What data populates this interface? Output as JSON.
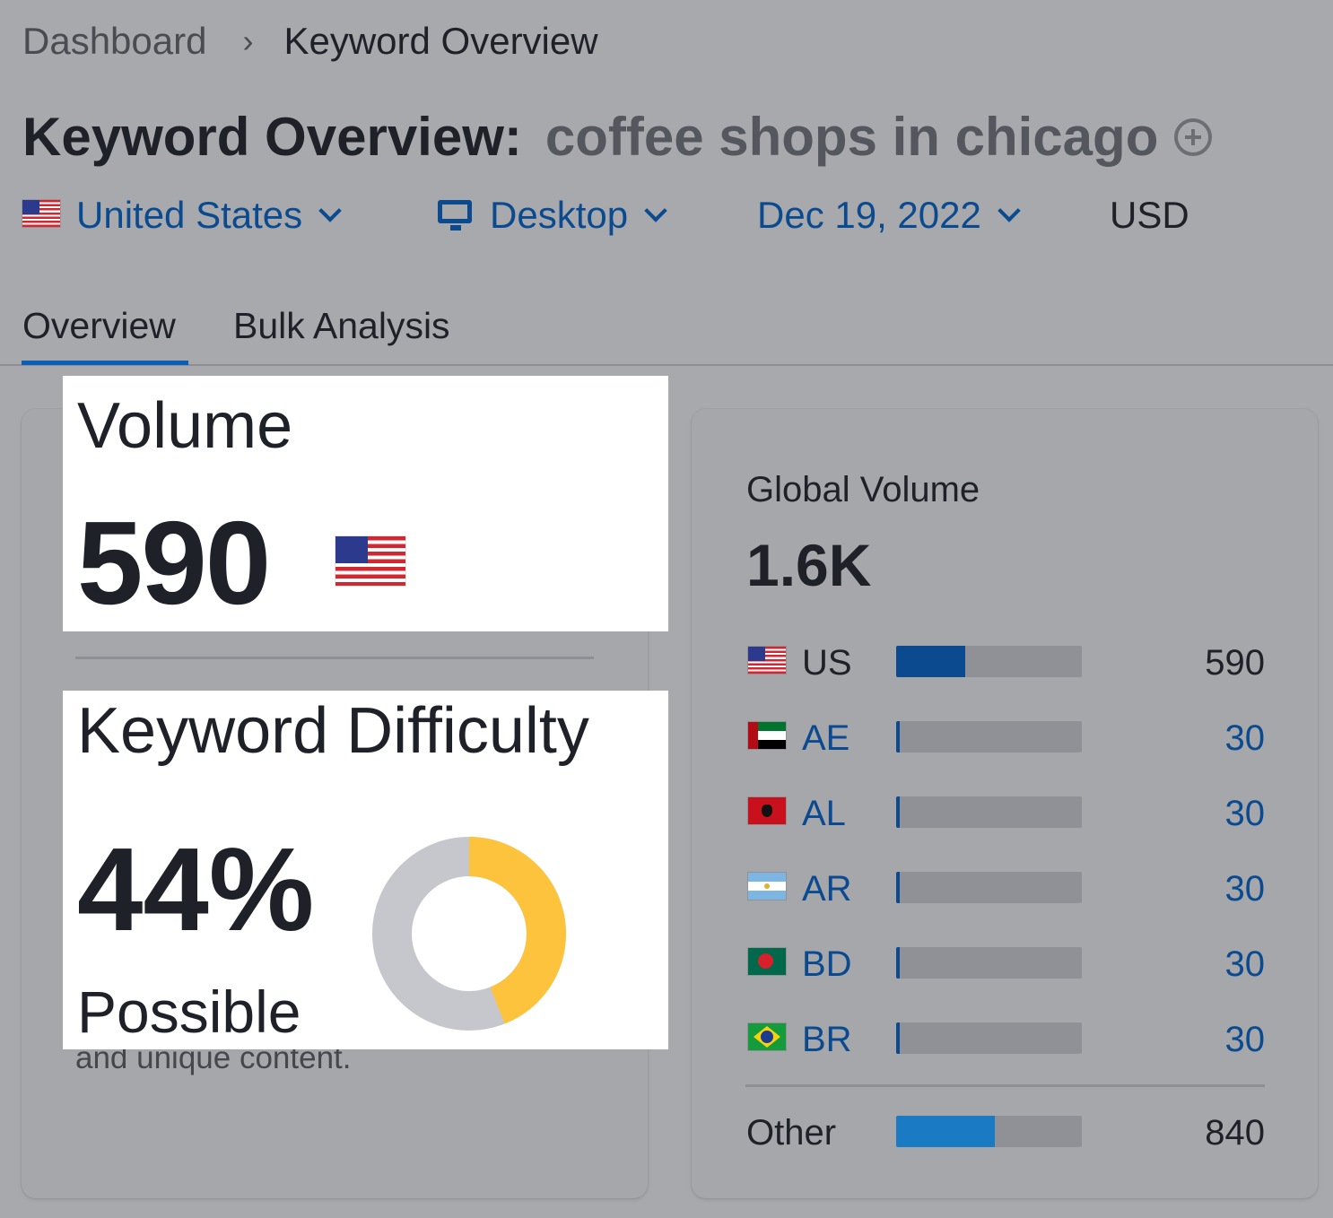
{
  "breadcrumb": {
    "root": "Dashboard",
    "separator": "›",
    "current": "Keyword Overview"
  },
  "title": {
    "prefix": "Keyword Overview:",
    "keyword": "coffee shops in chicago"
  },
  "filters": {
    "country": "United States",
    "device": "Desktop",
    "date": "Dec 19, 2022",
    "currency": "USD"
  },
  "tabs": [
    {
      "label": "Overview",
      "active": true
    },
    {
      "label": "Bulk Analysis",
      "active": false
    }
  ],
  "volume": {
    "label": "Volume",
    "value": "590"
  },
  "keyword_difficulty": {
    "label": "Keyword Difficulty",
    "value": "44%",
    "percent": 44,
    "level": "Possible",
    "description_fragment": "and unique content.",
    "colors": {
      "filled": "#fdc33d",
      "empty": "#c5c7cd"
    }
  },
  "global_volume": {
    "label": "Global Volume",
    "value": "1.6K",
    "countries": [
      {
        "code": "US",
        "value": "590",
        "share": 0.37,
        "link": false
      },
      {
        "code": "AE",
        "value": "30",
        "share": 0.02,
        "link": true
      },
      {
        "code": "AL",
        "value": "30",
        "share": 0.02,
        "link": true
      },
      {
        "code": "AR",
        "value": "30",
        "share": 0.02,
        "link": true
      },
      {
        "code": "BD",
        "value": "30",
        "share": 0.02,
        "link": true
      },
      {
        "code": "BR",
        "value": "30",
        "share": 0.02,
        "link": true
      }
    ],
    "other": {
      "label": "Other",
      "value": "840",
      "share": 0.53
    }
  },
  "colors": {
    "link_blue": "#0b4a8f",
    "bar_primary": "#0b4a8f",
    "bar_other": "#1a7bc4",
    "bar_track": "#909196"
  }
}
